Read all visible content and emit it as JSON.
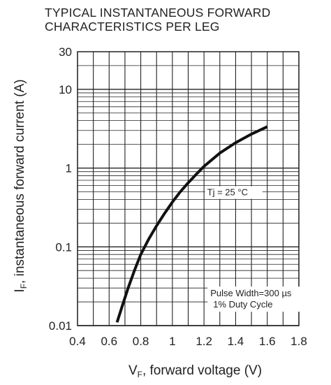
{
  "chart_data": {
    "type": "line",
    "title": "TYPICAL INSTANTANEOUS FORWARD CHARACTERISTICS PER LEG",
    "title_lines": [
      "TYPICAL INSTANTANEOUS FORWARD",
      "CHARACTERISTICS PER LEG"
    ],
    "xlabel": {
      "main": "V",
      "sub": "F",
      "rest": ", forward voltage (V)"
    },
    "ylabel": {
      "main": "I",
      "sub": "F",
      "rest": ", instantaneous forward current  (A)"
    },
    "x_scale": "linear",
    "y_scale": "log",
    "xlim": [
      0.4,
      1.8
    ],
    "ylim": [
      0.01,
      30
    ],
    "x_ticks": [
      0.4,
      0.6,
      0.8,
      1.0,
      1.2,
      1.4,
      1.6,
      1.8
    ],
    "x_tick_labels": [
      "0.4",
      "0.6",
      "0.8",
      "1",
      "1.2",
      "1.4",
      "1.6",
      "1.8"
    ],
    "y_ticks": [
      0.01,
      0.1,
      1,
      10,
      30
    ],
    "y_tick_labels": [
      "0.01",
      "0.1",
      "1",
      "10",
      "30"
    ],
    "grid": true,
    "series": [
      {
        "x": [
          0.65,
          0.68,
          0.72,
          0.76,
          0.8,
          0.85,
          0.9,
          0.95,
          1.0,
          1.05,
          1.1,
          1.15,
          1.2,
          1.3,
          1.4,
          1.5,
          1.6
        ],
        "y": [
          0.011,
          0.017,
          0.03,
          0.05,
          0.08,
          0.125,
          0.185,
          0.265,
          0.37,
          0.5,
          0.65,
          0.83,
          1.05,
          1.55,
          2.1,
          2.7,
          3.35
        ]
      }
    ],
    "annotations": [
      {
        "text": "Tj = 25 °C"
      },
      {
        "text": "Pulse Width=300 µs"
      },
      {
        "text": "1% Duty Cycle"
      }
    ]
  }
}
